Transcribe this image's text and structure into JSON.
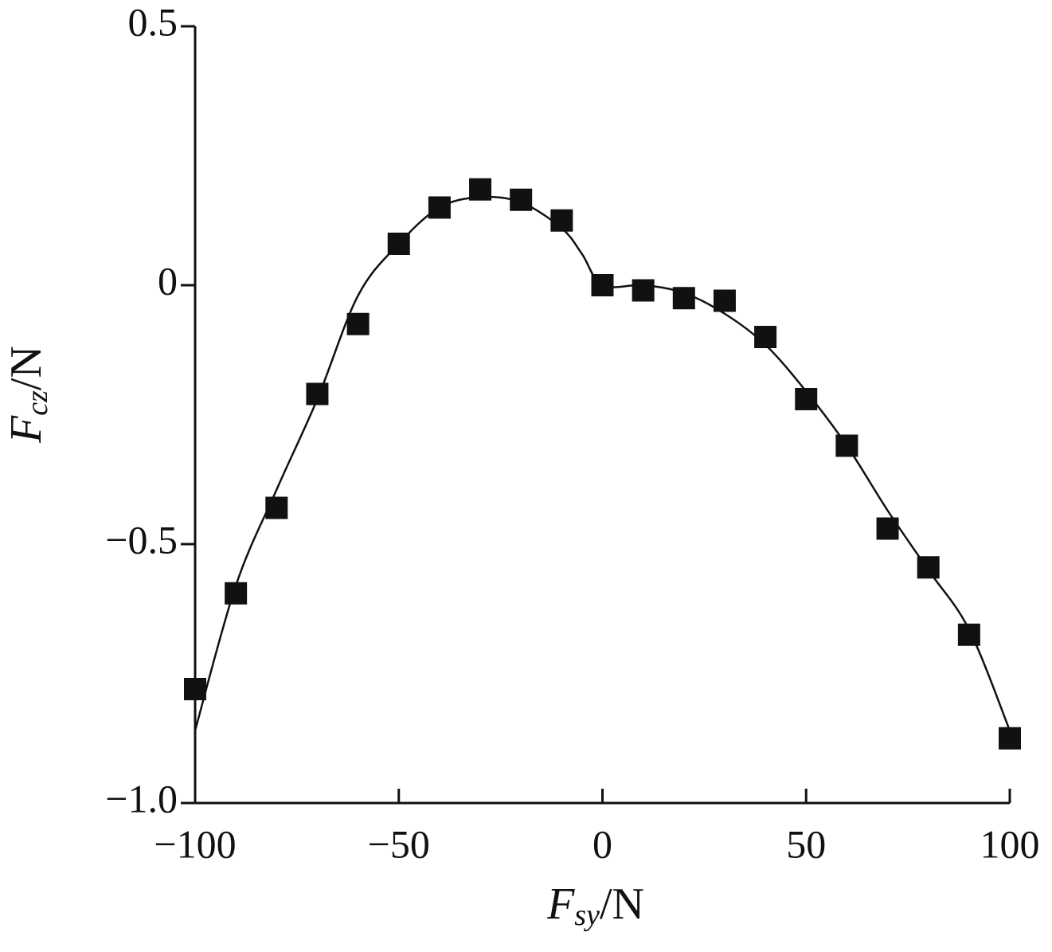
{
  "chart_data": {
    "type": "scatter",
    "xlabel": {
      "symbol": "F",
      "subscript": "sy",
      "unit": "/N"
    },
    "ylabel": {
      "symbol": "F",
      "subscript": "cz",
      "unit": "/N"
    },
    "xlim": [
      -100,
      100
    ],
    "xticks": [
      {
        "value": -100,
        "label": "−100"
      },
      {
        "value": -50,
        "label": "−50"
      },
      0,
      50,
      100
    ],
    "ylim": [
      -1.0,
      0.5
    ],
    "yticks": [
      {
        "value": -1.0,
        "label": "−1.0"
      },
      {
        "value": -0.5,
        "label": "−0.5"
      },
      0,
      0.5
    ],
    "series": [
      {
        "mode": "markers",
        "marker": "square",
        "color": "#111111",
        "x": [
          -100,
          -90,
          -80,
          -70,
          -60,
          -50,
          -40,
          -30,
          -20,
          -10,
          0,
          10,
          20,
          30,
          40,
          50,
          60,
          70,
          80,
          90,
          100
        ],
        "values": [
          -0.78,
          -0.595,
          -0.43,
          -0.21,
          -0.075,
          0.08,
          0.15,
          0.185,
          0.165,
          0.125,
          0,
          -0.01,
          -0.025,
          -0.03,
          -0.1,
          -0.22,
          -0.31,
          -0.47,
          -0.545,
          -0.675,
          -0.875
        ]
      },
      {
        "mode": "line",
        "color": "#111111",
        "x": [
          -100,
          -90,
          -80,
          -70,
          -60,
          -50,
          -40,
          -30,
          -20,
          -10,
          -5,
          0,
          10,
          20,
          30,
          40,
          50,
          60,
          70,
          80,
          90,
          100
        ],
        "values": [
          -0.86,
          -0.58,
          -0.395,
          -0.22,
          -0.02,
          0.08,
          0.15,
          0.17,
          0.16,
          0.11,
          0.06,
          0.0,
          0.0,
          -0.015,
          -0.055,
          -0.115,
          -0.205,
          -0.31,
          -0.435,
          -0.55,
          -0.665,
          -0.86
        ]
      }
    ]
  }
}
